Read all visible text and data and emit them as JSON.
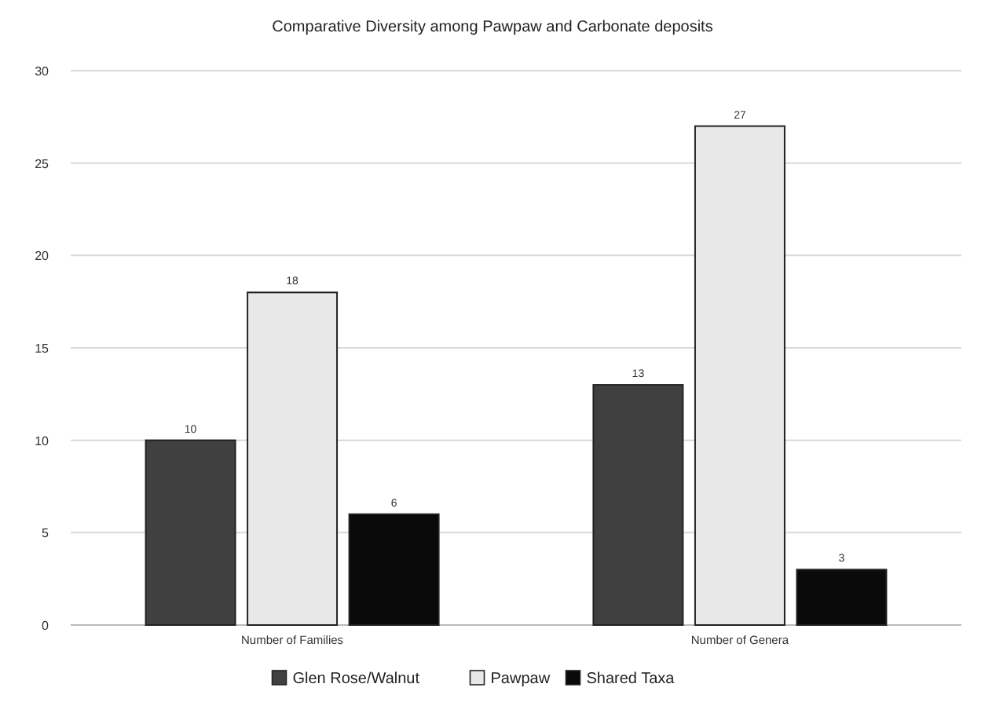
{
  "chart_data": {
    "type": "bar",
    "title": "Comparative Diversity among Pawpaw and Carbonate deposits",
    "categories": [
      "Number of Families",
      "Number of Genera"
    ],
    "series": [
      {
        "name": "Glen Rose/Walnut",
        "color": "#404040",
        "values": [
          10,
          13
        ]
      },
      {
        "name": "Pawpaw",
        "color": "#e8e8e8",
        "values": [
          18,
          27
        ]
      },
      {
        "name": "Shared Taxa",
        "color": "#0a0a0a",
        "values": [
          6,
          3
        ]
      }
    ],
    "ylim": [
      0,
      30
    ],
    "yticks": [
      0,
      5,
      10,
      15,
      20,
      25,
      30
    ],
    "grid": "y",
    "legend": "bottom",
    "data_labels": true
  }
}
